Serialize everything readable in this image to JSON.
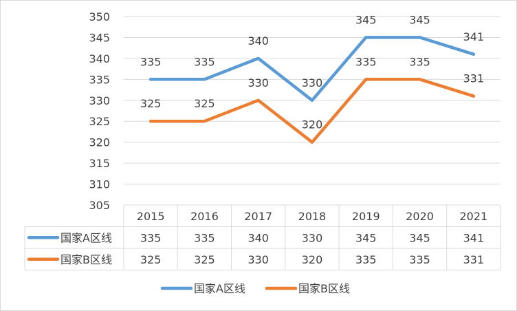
{
  "chart_data": {
    "type": "line",
    "categories": [
      "2015",
      "2016",
      "2017",
      "2018",
      "2019",
      "2020",
      "2021"
    ],
    "series": [
      {
        "name": "国家A区线",
        "color": "#5B9BD5",
        "values": [
          335,
          335,
          340,
          330,
          345,
          345,
          341
        ]
      },
      {
        "name": "国家B区线",
        "color": "#ED7D31",
        "values": [
          325,
          325,
          330,
          320,
          335,
          335,
          331
        ]
      }
    ],
    "ylim": [
      305,
      350
    ],
    "yticks": [
      305,
      310,
      315,
      320,
      325,
      330,
      335,
      340,
      345,
      350
    ],
    "grid": true,
    "data_table": true,
    "legend_position": "bottom",
    "title": "",
    "xlabel": "",
    "ylabel": ""
  }
}
